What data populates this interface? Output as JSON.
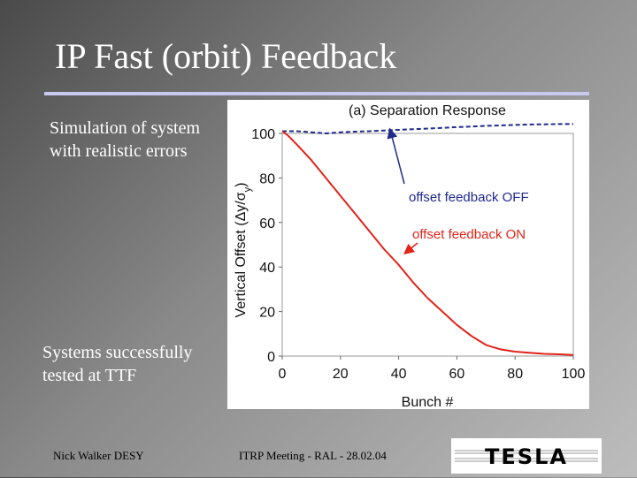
{
  "slide": {
    "title": "IP Fast (orbit) Feedback",
    "text_simulation": "Simulation of system with realistic errors",
    "text_systems": "Systems successfully tested at TTF",
    "footer_left": "Nick Walker DESY",
    "footer_center": "ITRP Meeting - RAL - 28.02.04",
    "logo_text": "TESLA"
  },
  "chart_data": {
    "type": "line",
    "title": "(a) Separation Response",
    "xlabel": "Bunch #",
    "ylabel": "Vertical Offset (Δy/σy)",
    "ylabel_main": "Vertical Offset (Δy/σ",
    "ylabel_sub": "y",
    "ylabel_close": ")",
    "xlim": [
      0,
      100
    ],
    "ylim": [
      0,
      100
    ],
    "x_ticks": [
      0,
      20,
      40,
      60,
      80,
      100
    ],
    "y_ticks": [
      0,
      20,
      40,
      60,
      80,
      100
    ],
    "series": [
      {
        "name": "offset feedback OFF",
        "color": "#1f2a8c",
        "style": "dashed",
        "x": [
          0,
          5,
          10,
          15,
          20,
          25,
          30,
          35,
          40,
          45,
          50,
          55,
          60,
          65,
          70,
          75,
          80,
          85,
          90,
          95,
          100
        ],
        "values": [
          101,
          101,
          100.5,
          100,
          100.5,
          100.8,
          101,
          101.3,
          101.6,
          101.9,
          102.2,
          102.5,
          102.8,
          103.1,
          103.4,
          103.6,
          103.8,
          104,
          104.1,
          104.2,
          104.2
        ]
      },
      {
        "name": "offset feedback ON",
        "color": "#e2231a",
        "style": "solid",
        "x": [
          0,
          2,
          5,
          10,
          15,
          20,
          25,
          30,
          35,
          40,
          45,
          50,
          55,
          60,
          65,
          70,
          75,
          80,
          85,
          90,
          95,
          100
        ],
        "values": [
          101,
          99,
          95,
          88,
          80,
          72,
          64,
          56,
          48,
          41,
          33,
          26,
          20,
          14,
          9,
          5,
          3,
          2,
          1.5,
          1,
          0.8,
          0.5
        ]
      }
    ],
    "annotations": [
      {
        "text": "offset feedback OFF",
        "color": "#1f2a8c",
        "arrow_to": [
          37,
          102
        ]
      },
      {
        "text": "offset feedback ON",
        "color": "#e2231a",
        "arrow_to": [
          42,
          46
        ]
      }
    ]
  }
}
